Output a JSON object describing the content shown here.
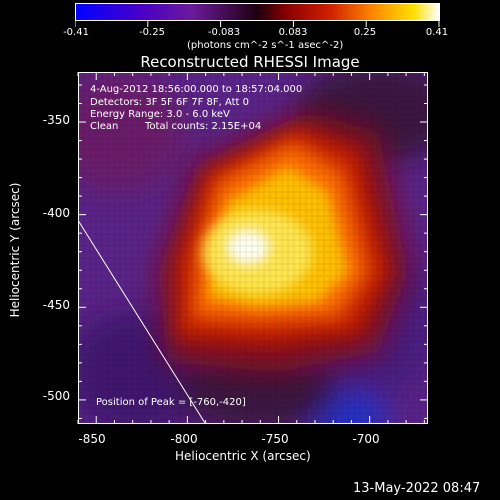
{
  "colorbar": {
    "ticks": [
      "-0.41",
      "-0.25",
      "-0.083",
      "0.083",
      "0.25",
      "0.41"
    ],
    "tick_values": [
      -0.41,
      -0.25,
      -0.083,
      0.083,
      0.25,
      0.41
    ],
    "units_label": "(photons cm^-2 s^-1 asec^-2)",
    "range": [
      -0.41,
      0.41
    ]
  },
  "chart_data": {
    "type": "heatmap",
    "title": "Reconstructed RHESSI Image",
    "xlabel": "Heliocentric X (arcsec)",
    "ylabel": "Heliocentric Y (arcsec)",
    "xlim": [
      -860,
      -668
    ],
    "ylim": [
      -513,
      -323
    ],
    "x_ticks": [
      -850,
      -800,
      -750,
      -700
    ],
    "y_ticks": [
      -350,
      -400,
      -450,
      -500
    ],
    "info": {
      "time": "4-Aug-2012 18:56:00.000 to 18:57:04.000",
      "detectors": "Detectors: 3F 5F 6F 7F 8F, Att 0",
      "energy": "Energy Range: 3.0 - 6.0 keV",
      "clean_label": "Clean",
      "counts": "Total counts: 2.15E+04"
    },
    "peak_label": "Position of Peak = [-760,-420]",
    "peak": [
      -760,
      -420
    ],
    "limb_line": [
      [
        -860,
        -403
      ],
      [
        -790,
        -513
      ]
    ]
  },
  "footer": {
    "date": "13-May-2022 08:47"
  }
}
